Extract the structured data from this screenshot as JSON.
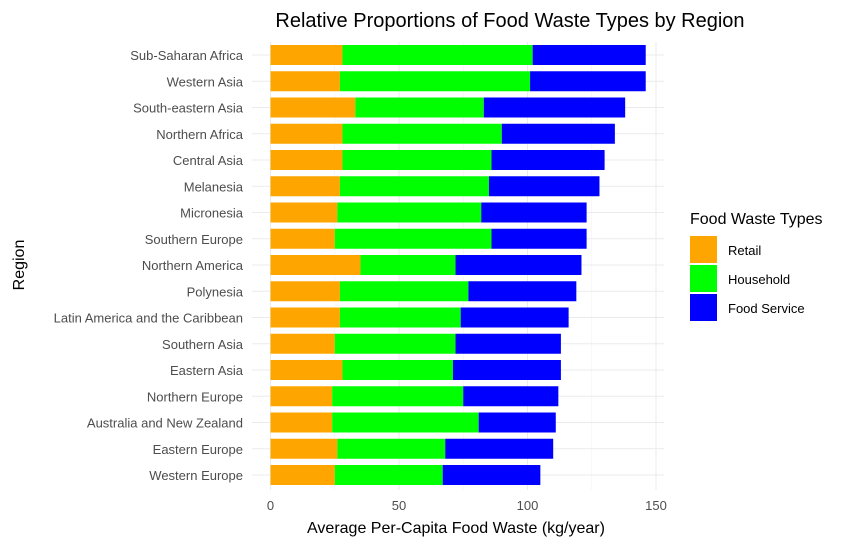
{
  "chart_data": {
    "type": "bar",
    "orientation": "horizontal",
    "stacked": true,
    "title": "Relative Proportions of Food Waste Types by Region",
    "xlabel": "Average Per-Capita Food Waste (kg/year)",
    "ylabel": "Region",
    "xlim": [
      0,
      150
    ],
    "xticks": [
      0,
      50,
      100,
      150
    ],
    "grid": true,
    "legend_title": "Food Waste Types",
    "legend_position": "right",
    "categories": [
      "Sub-Saharan Africa",
      "Western Asia",
      "South-eastern Asia",
      "Northern Africa",
      "Central Asia",
      "Melanesia",
      "Micronesia",
      "Southern Europe",
      "Northern America",
      "Polynesia",
      "Latin America and the Caribbean",
      "Southern Asia",
      "Eastern Asia",
      "Northern Europe",
      "Australia and New Zealand",
      "Eastern Europe",
      "Western Europe"
    ],
    "series": [
      {
        "name": "Retail",
        "color": "#FFA500",
        "values": [
          28,
          27,
          33,
          28,
          28,
          27,
          26,
          25,
          35,
          27,
          27,
          25,
          28,
          24,
          24,
          26,
          25
        ]
      },
      {
        "name": "Household",
        "color": "#00FF00",
        "values": [
          74,
          74,
          50,
          62,
          58,
          58,
          56,
          61,
          37,
          50,
          47,
          47,
          43,
          51,
          57,
          42,
          42
        ]
      },
      {
        "name": "Food Service",
        "color": "#0000FF",
        "values": [
          44,
          45,
          55,
          44,
          44,
          43,
          41,
          37,
          49,
          42,
          42,
          41,
          42,
          37,
          30,
          42,
          38
        ]
      }
    ]
  }
}
